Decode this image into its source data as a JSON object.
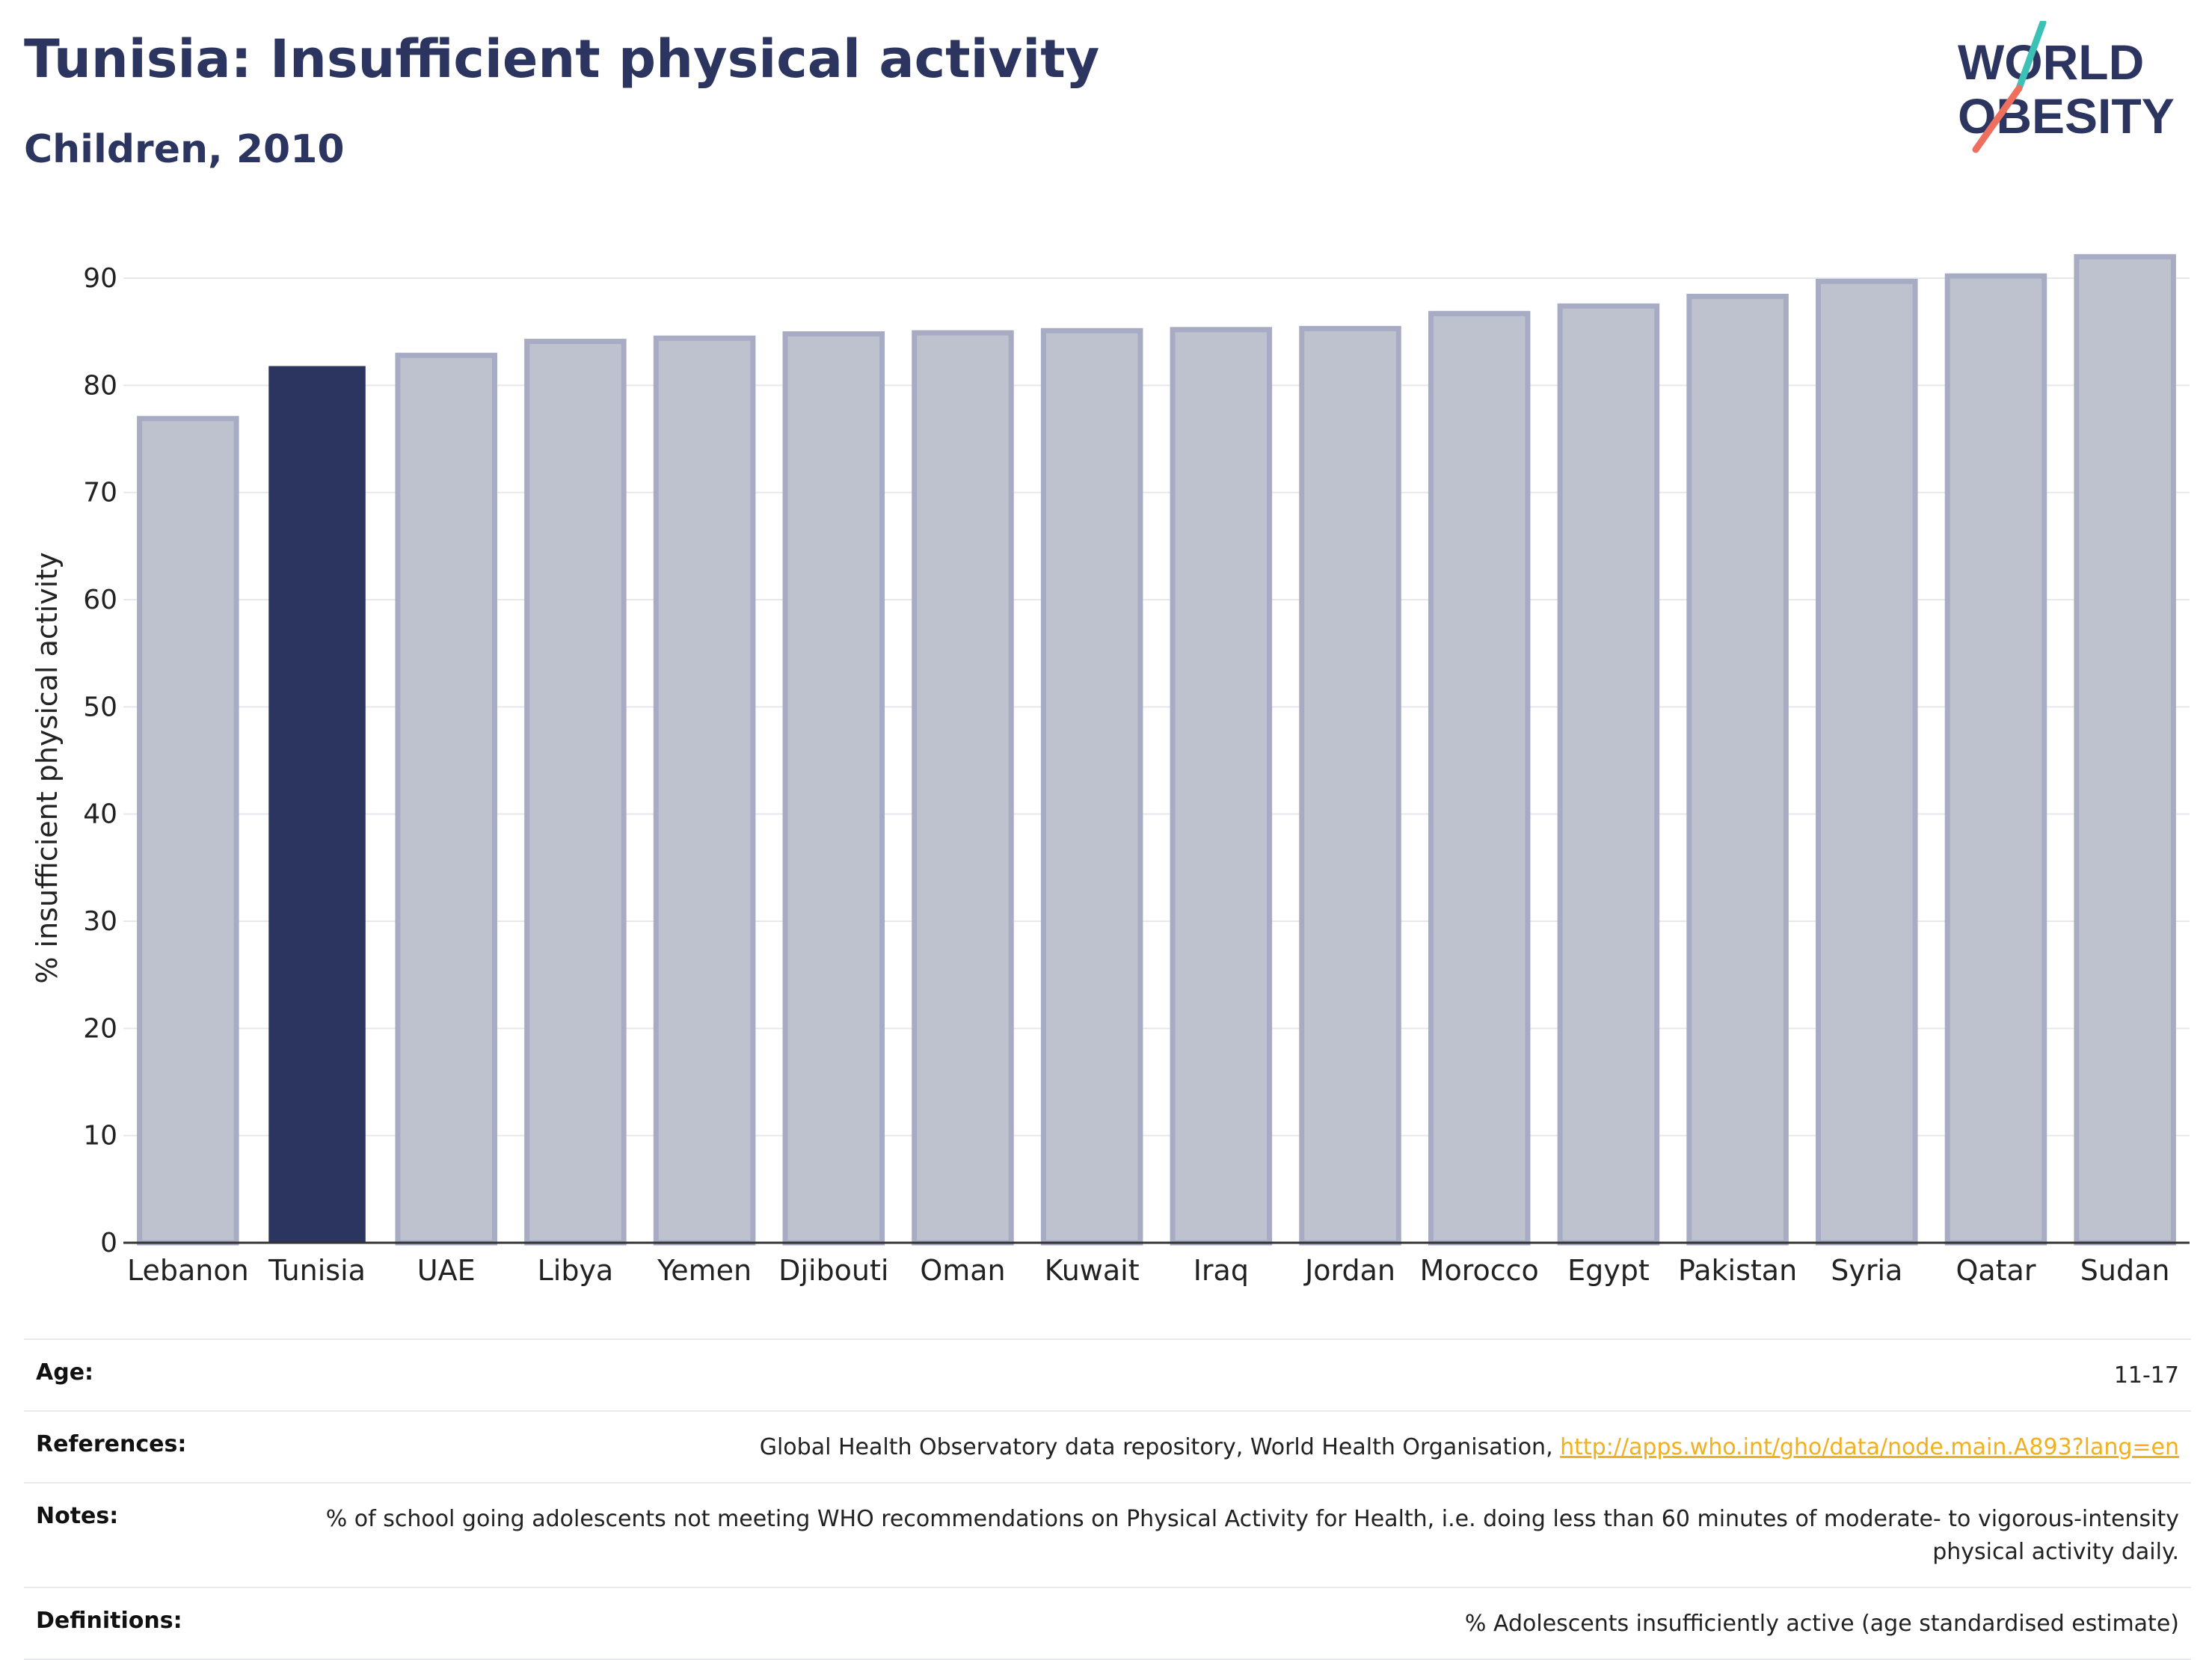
{
  "header": {
    "title": "Tunisia: Insufficient physical activity",
    "subtitle": "Children, 2010"
  },
  "logo": {
    "line1": "WORLD",
    "line2": "OBESITY",
    "text_color": "#2c3560",
    "accent_teal": "#3cc1b6",
    "accent_coral": "#ef6f5e"
  },
  "chart_data": {
    "type": "bar",
    "categories": [
      "Lebanon",
      "Tunisia",
      "UAE",
      "Libya",
      "Yemen",
      "Djibouti",
      "Oman",
      "Kuwait",
      "Iraq",
      "Jordan",
      "Morocco",
      "Egypt",
      "Pakistan",
      "Syria",
      "Qatar",
      "Sudan"
    ],
    "values": [
      76.9,
      81.8,
      82.8,
      84.1,
      84.4,
      84.8,
      84.9,
      85.1,
      85.2,
      85.3,
      86.7,
      87.4,
      88.3,
      89.7,
      90.2,
      92.0
    ],
    "highlight": "Tunisia",
    "title": "",
    "xlabel": "",
    "ylabel": "% insufficient physical activity",
    "ylim": [
      0,
      90
    ],
    "yticks": [
      0,
      10,
      20,
      30,
      40,
      50,
      60,
      70,
      80,
      90
    ],
    "grid": true,
    "colors": {
      "bar": "#bec2ce",
      "bar_edge": "#a7acc4",
      "highlight": "#2c3560",
      "grid": "#e6e8ee",
      "axis": "#333333"
    }
  },
  "info": {
    "age_label": "Age:",
    "age_value": "11-17",
    "references_label": "References:",
    "references_text": "Global Health Observatory data repository, World Health Organisation, ",
    "references_link": "http://apps.who.int/gho/data/node.main.A893?lang=en",
    "notes_label": "Notes:",
    "notes_text": "% of school going adolescents not meeting WHO recommendations on Physical Activity for Health, i.e. doing less than 60 minutes of moderate- to vigorous-intensity physical activity daily.",
    "definitions_label": "Definitions:",
    "definitions_text": "% Adolescents insufficiently active (age standardised estimate)"
  }
}
